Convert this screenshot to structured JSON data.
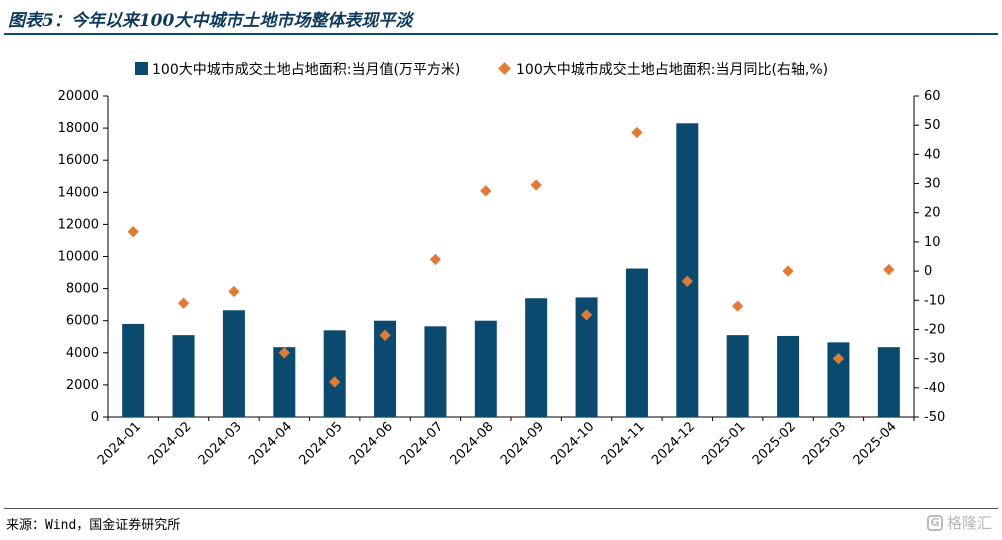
{
  "title": "图表5：今年以来100大中城市土地市场整体表现平淡",
  "source": "来源：Wind，国金证券研究所",
  "watermark": "格隆汇",
  "colors": {
    "bar": "#0b4a6e",
    "marker": "#e07a35",
    "title": "#0d3a5c"
  },
  "chart_data": {
    "type": "bar",
    "categories": [
      "2024-01",
      "2024-02",
      "2024-03",
      "2024-04",
      "2024-05",
      "2024-06",
      "2024-07",
      "2024-08",
      "2024-09",
      "2024-10",
      "2024-11",
      "2024-12",
      "2025-01",
      "2025-02",
      "2025-03",
      "2025-04"
    ],
    "series": [
      {
        "name": "100大中城市成交土地占地面积:当月值(万平方米)",
        "type": "bar",
        "axis": "left",
        "values": [
          5800,
          5100,
          6650,
          4350,
          5400,
          6000,
          5650,
          6000,
          7400,
          7450,
          9250,
          18300,
          5100,
          5050,
          4650,
          4350
        ]
      },
      {
        "name": "100大中城市成交土地占地面积:当月同比(右轴,%)",
        "type": "scatter",
        "axis": "right",
        "values": [
          13.5,
          -11,
          -7,
          -28,
          -38,
          -22,
          4,
          27.5,
          29.5,
          -15,
          47.5,
          -3.5,
          -12,
          0,
          -30,
          0.5
        ]
      }
    ],
    "y_left": {
      "min": 0,
      "max": 20000,
      "step": 2000
    },
    "y_right": {
      "min": -50,
      "max": 60,
      "step": 10
    },
    "legend_position": "top-center",
    "grid": false
  }
}
